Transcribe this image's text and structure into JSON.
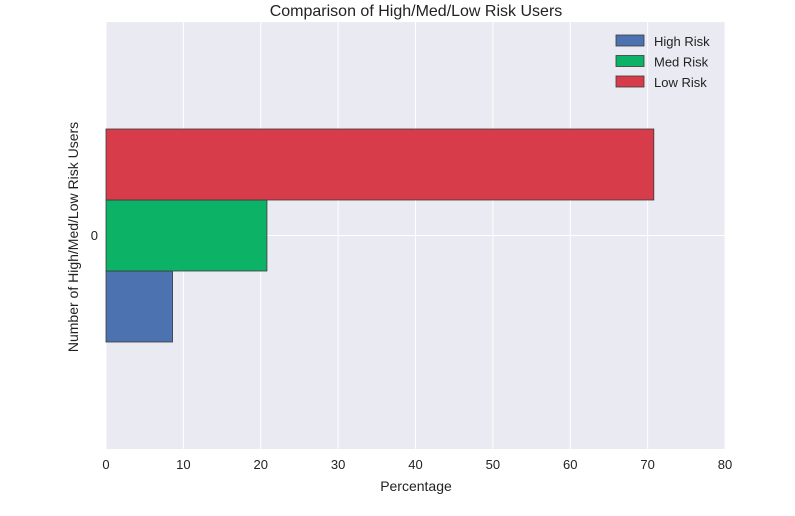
{
  "chart_data": {
    "type": "bar",
    "orientation": "horizontal",
    "title": "Comparison of High/Med/Low Risk Users",
    "xlabel": "Percentage",
    "ylabel": "Number of High/Med/Low Risk Users",
    "categories": [
      "0"
    ],
    "xlim": [
      0,
      80
    ],
    "xticks": [
      "0",
      "10",
      "20",
      "30",
      "40",
      "50",
      "60",
      "70",
      "80"
    ],
    "grid": true,
    "legend_position": "top-right",
    "series": [
      {
        "name": "High Risk",
        "values": [
          8.6
        ],
        "color": "#4c72b0"
      },
      {
        "name": "Med Risk",
        "values": [
          20.8
        ],
        "color": "#0cb266"
      },
      {
        "name": "Low Risk",
        "values": [
          70.8
        ],
        "color": "#d73c4a"
      }
    ],
    "colors": {
      "plot_background": "#eaeaf2",
      "grid": "#ffffff",
      "bar_edge": "#3a3a3a"
    }
  }
}
